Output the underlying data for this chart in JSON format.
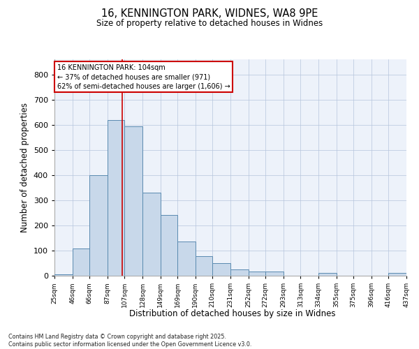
{
  "title_line1": "16, KENNINGTON PARK, WIDNES, WA8 9PE",
  "title_line2": "Size of property relative to detached houses in Widnes",
  "xlabel": "Distribution of detached houses by size in Widnes",
  "ylabel": "Number of detached properties",
  "bar_color": "#c8d8ea",
  "bar_edge_color": "#5a8ab0",
  "background_color": "#edf2fa",
  "grid_color": "#b5c5dd",
  "vline_color": "#cc0000",
  "vline_x": 104,
  "annotation_text": "16 KENNINGTON PARK: 104sqm\n← 37% of detached houses are smaller (971)\n62% of semi-detached houses are larger (1,606) →",
  "bin_edges": [
    25,
    46,
    66,
    87,
    107,
    128,
    149,
    169,
    190,
    210,
    231,
    252,
    272,
    293,
    313,
    334,
    355,
    375,
    396,
    416,
    437
  ],
  "heights": [
    5,
    108,
    400,
    620,
    593,
    330,
    240,
    135,
    78,
    50,
    25,
    18,
    18,
    0,
    0,
    10,
    0,
    0,
    0,
    10
  ],
  "ylim_max": 860,
  "yticks": [
    0,
    100,
    200,
    300,
    400,
    500,
    600,
    700,
    800
  ],
  "footer": "Contains HM Land Registry data © Crown copyright and database right 2025.\nContains public sector information licensed under the Open Government Licence v3.0."
}
